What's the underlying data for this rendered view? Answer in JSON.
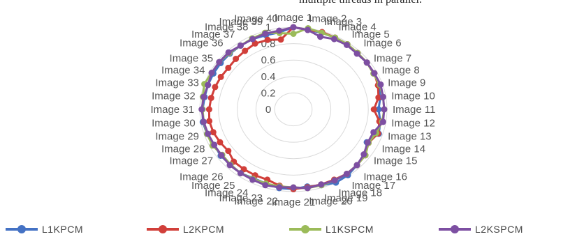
{
  "header": {
    "fragment_text": "multiple threads in parallel."
  },
  "chart_data": {
    "type": "radar",
    "categories": [
      "Image 1",
      "Image 2",
      "Image 3",
      "Image 4",
      "Image 5",
      "Image 6",
      "Image 7",
      "Image 8",
      "Image 9",
      "Image 10",
      "Image 11",
      "Image 12",
      "Image 13",
      "Image 14",
      "Image 15",
      "Image 16",
      "Image 17",
      "Image 18",
      "Image 19",
      "Image 20",
      "Image 21",
      "Image 22",
      "Image 23",
      "Image 24",
      "Image 25",
      "Image 26",
      "Image 27",
      "Image 28",
      "Image 29",
      "Image 30",
      "Image 31",
      "Image 32",
      "Image 33",
      "Image 34",
      "Image 35",
      "Image 36",
      "Image 37",
      "Image 38",
      "Image 39",
      "Image 40"
    ],
    "radial_ticks": [
      "0",
      "0.2",
      "0.4",
      "0.6",
      "0.8",
      "1"
    ],
    "rmax": 1,
    "legend_position": "bottom",
    "series": [
      {
        "name": "L1KPCM",
        "color": "#4472c4",
        "values": [
          1.0,
          0.98,
          0.98,
          0.98,
          0.98,
          0.97,
          0.97,
          0.97,
          0.96,
          0.94,
          0.91,
          0.94,
          0.96,
          0.88,
          0.95,
          0.96,
          0.99,
          1.0,
          0.97,
          0.95,
          0.97,
          0.97,
          0.95,
          0.94,
          0.96,
          0.95,
          0.96,
          0.95,
          0.97,
          0.98,
          0.97,
          0.96,
          0.96,
          0.96,
          0.96,
          0.96,
          0.96,
          0.96,
          0.95,
          0.95
        ]
      },
      {
        "name": "L2KPCM",
        "color": "#d13f3a",
        "values": [
          1.0,
          0.98,
          0.99,
          0.98,
          0.98,
          0.97,
          0.97,
          0.97,
          0.95,
          0.92,
          0.86,
          0.93,
          0.95,
          0.9,
          0.95,
          0.96,
          0.97,
          0.96,
          0.96,
          0.96,
          0.97,
          0.94,
          0.9,
          0.9,
          0.9,
          0.9,
          0.86,
          0.88,
          0.9,
          0.91,
          0.9,
          0.89,
          0.88,
          0.87,
          0.86,
          0.87,
          0.88,
          0.9,
          0.89,
          0.86
        ]
      },
      {
        "name": "L1KSPCM",
        "color": "#9bbb59",
        "values": [
          0.92,
          1.0,
          0.98,
          0.98,
          0.98,
          0.97,
          0.97,
          0.96,
          0.97,
          0.97,
          0.97,
          0.96,
          0.93,
          0.9,
          0.95,
          0.96,
          0.97,
          0.97,
          0.97,
          0.97,
          0.95,
          0.95,
          0.95,
          0.95,
          0.96,
          0.95,
          0.94,
          0.97,
          0.97,
          0.97,
          0.97,
          0.98,
          1.0,
          0.98,
          0.98,
          0.97,
          0.96,
          0.97,
          0.98,
          0.94
        ]
      },
      {
        "name": "L2KSPCM",
        "color": "#7d4fa2",
        "values": [
          1.0,
          0.98,
          0.93,
          0.96,
          0.97,
          0.96,
          0.97,
          0.97,
          0.98,
          0.97,
          0.97,
          0.97,
          0.9,
          0.89,
          0.93,
          0.96,
          0.97,
          0.97,
          0.96,
          0.97,
          0.95,
          0.96,
          0.97,
          0.96,
          0.96,
          0.96,
          0.95,
          0.95,
          0.96,
          0.97,
          0.98,
          0.97,
          0.96,
          0.98,
          0.98,
          0.98,
          0.96,
          0.96,
          0.97,
          0.97
        ]
      }
    ]
  }
}
